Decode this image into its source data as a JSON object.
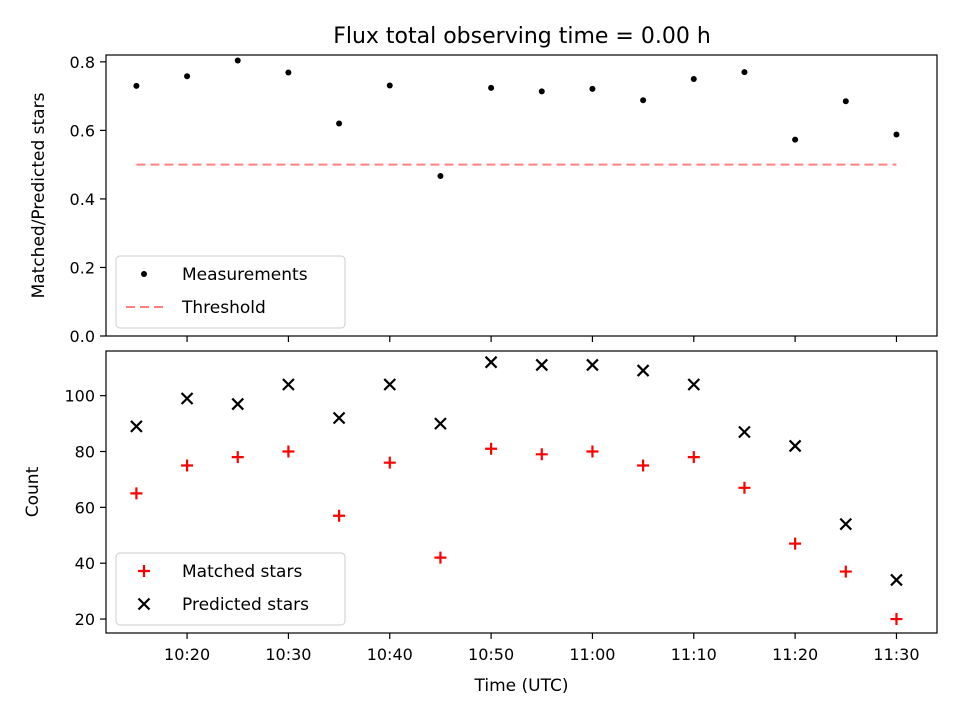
{
  "chart_data": [
    {
      "type": "scatter",
      "title": "Flux total observing time = 0.00 h",
      "xlabel": "",
      "ylabel": "Matched/Predicted stars",
      "ylim": [
        0,
        0.82
      ],
      "yticks": [
        0.0,
        0.2,
        0.4,
        0.6,
        0.8
      ],
      "ytick_labels": [
        "0.0",
        "0.2",
        "0.4",
        "0.6",
        "0.8"
      ],
      "xlim_minutes": [
        612,
        694
      ],
      "xticks_minutes": [
        620,
        630,
        640,
        650,
        660,
        670,
        680,
        690
      ],
      "xtick_labels": [
        "",
        "",
        "",
        "",
        "",
        "",
        "",
        ""
      ],
      "legend_position": "lower-left",
      "series": [
        {
          "name": "Measurements",
          "kind": "scatter",
          "marker": "dot",
          "color": "#000000",
          "x": [
            "10:15",
            "10:20",
            "10:25",
            "10:30",
            "10:35",
            "10:40",
            "10:45",
            "10:50",
            "10:55",
            "11:00",
            "11:05",
            "11:10",
            "11:15",
            "11:20",
            "11:25",
            "11:30"
          ],
          "x_minutes": [
            615,
            620,
            625,
            630,
            635,
            640,
            645,
            650,
            655,
            660,
            665,
            670,
            675,
            680,
            685,
            690
          ],
          "y": [
            0.73,
            0.758,
            0.804,
            0.769,
            0.62,
            0.731,
            0.467,
            0.724,
            0.714,
            0.721,
            0.688,
            0.75,
            0.77,
            0.573,
            0.685,
            0.588
          ]
        },
        {
          "name": "Threshold",
          "kind": "line",
          "style": "dashed",
          "color": "#ff8080",
          "x_minutes": [
            615,
            690
          ],
          "y": [
            0.5,
            0.5
          ]
        }
      ]
    },
    {
      "type": "scatter",
      "title": "",
      "xlabel": "Time (UTC)",
      "ylabel": "Count",
      "ylim": [
        15,
        116
      ],
      "yticks": [
        20,
        40,
        60,
        80,
        100
      ],
      "ytick_labels": [
        "20",
        "40",
        "60",
        "80",
        "100"
      ],
      "xlim_minutes": [
        612,
        694
      ],
      "xticks_minutes": [
        620,
        630,
        640,
        650,
        660,
        670,
        680,
        690
      ],
      "xtick_labels": [
        "10:20",
        "10:30",
        "10:40",
        "10:50",
        "11:00",
        "11:10",
        "11:20",
        "11:30"
      ],
      "legend_position": "lower-left",
      "series": [
        {
          "name": "Matched stars",
          "kind": "scatter",
          "marker": "plus",
          "color": "#ff0000",
          "x": [
            "10:15",
            "10:20",
            "10:25",
            "10:30",
            "10:35",
            "10:40",
            "10:45",
            "10:50",
            "10:55",
            "11:00",
            "11:05",
            "11:10",
            "11:15",
            "11:20",
            "11:25",
            "11:30"
          ],
          "x_minutes": [
            615,
            620,
            625,
            630,
            635,
            640,
            645,
            650,
            655,
            660,
            665,
            670,
            675,
            680,
            685,
            690
          ],
          "y": [
            65,
            75,
            78,
            80,
            57,
            76,
            42,
            81,
            79,
            80,
            75,
            78,
            67,
            47,
            37,
            20
          ]
        },
        {
          "name": "Predicted stars",
          "kind": "scatter",
          "marker": "x",
          "color": "#000000",
          "x": [
            "10:15",
            "10:20",
            "10:25",
            "10:30",
            "10:35",
            "10:40",
            "10:45",
            "10:50",
            "10:55",
            "11:00",
            "11:05",
            "11:10",
            "11:15",
            "11:20",
            "11:25",
            "11:30"
          ],
          "x_minutes": [
            615,
            620,
            625,
            630,
            635,
            640,
            645,
            650,
            655,
            660,
            665,
            670,
            675,
            680,
            685,
            690
          ],
          "y": [
            89,
            99,
            97,
            104,
            92,
            104,
            90,
            112,
            111,
            111,
            109,
            104,
            87,
            82,
            54,
            34
          ]
        }
      ]
    }
  ]
}
